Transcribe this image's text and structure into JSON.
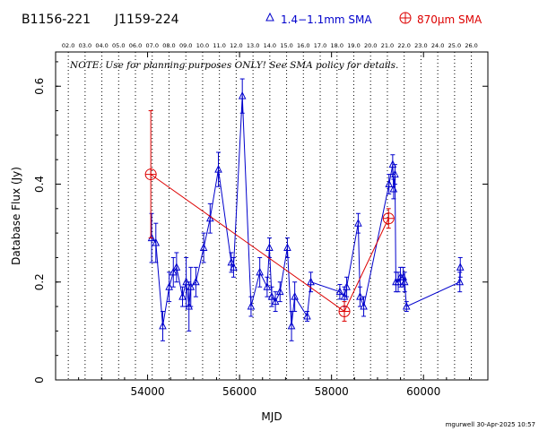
{
  "header": {
    "source_name": "B1156-221",
    "alt_name": "J1159-224",
    "legend_sma_mm": "1.4−1.1mm SMA",
    "legend_sma_870": "870μm SMA"
  },
  "note": "NOTE: Use for planning purposes ONLY! See SMA policy for details.",
  "footer": "mgurwell 30-Apr-2025 10:57",
  "colors": {
    "blue": "#0000cc",
    "red": "#dd0000",
    "text": "#000000"
  },
  "chart_data": {
    "type": "scatter",
    "title": "",
    "xlabel": "MJD",
    "ylabel": "Database Flux (Jy)",
    "xlim": [
      52000,
      61400
    ],
    "ylim": [
      0,
      0.67
    ],
    "x_ticks": [
      54000,
      56000,
      58000,
      60000
    ],
    "y_ticks": [
      0,
      0.2,
      0.4,
      0.6
    ],
    "y_tick_labels": [
      "0",
      "0.2",
      "0.4",
      "0.6"
    ],
    "top_axis_labels": [
      "02.0",
      "03.0",
      "04.0",
      "05.0",
      "06.0",
      "07.0",
      "08.0",
      "09.0",
      "10.0",
      "11.0",
      "12.0",
      "13.0",
      "14.0",
      "15.0",
      "16.0",
      "17.0",
      "18.0",
      "19.0",
      "20.0",
      "21.0",
      "22.0",
      "23.0",
      "24.0",
      "25.0",
      "26.0"
    ],
    "top_axis_mjd": [
      52276,
      52641,
      53006,
      53371,
      53736,
      54101,
      54466,
      54832,
      55197,
      55562,
      55927,
      56293,
      56658,
      57023,
      57388,
      57754,
      58119,
      58484,
      58849,
      59215,
      59580,
      59945,
      60310,
      60676,
      61041
    ],
    "grid": "vertical dotted lines at year boundaries",
    "series": [
      {
        "name": "1.4−1.1mm SMA",
        "color": "#0000cc",
        "marker": "triangle",
        "x": [
          54088,
          54180,
          54330,
          54470,
          54560,
          54630,
          54760,
          54840,
          54900,
          54940,
          55050,
          55220,
          55360,
          55540,
          55820,
          55870,
          56060,
          56250,
          56440,
          56600,
          56650,
          56700,
          56780,
          56880,
          57040,
          57130,
          57200,
          57470,
          57550,
          58180,
          58280,
          58330,
          58580,
          58620,
          58700,
          59250,
          59330,
          59350,
          59380,
          59400,
          59450,
          59500,
          59560,
          59590,
          59630,
          60790,
          60800
        ],
        "y": [
          0.29,
          0.28,
          0.11,
          0.19,
          0.22,
          0.23,
          0.17,
          0.2,
          0.15,
          0.19,
          0.2,
          0.27,
          0.33,
          0.43,
          0.24,
          0.23,
          0.58,
          0.15,
          0.22,
          0.19,
          0.27,
          0.17,
          0.16,
          0.18,
          0.27,
          0.11,
          0.17,
          0.13,
          0.2,
          0.18,
          0.17,
          0.19,
          0.32,
          0.17,
          0.15,
          0.4,
          0.44,
          0.39,
          0.42,
          0.2,
          0.2,
          0.21,
          0.21,
          0.2,
          0.15,
          0.2,
          0.23
        ],
        "yerr": [
          0.05,
          0.04,
          0.03,
          0.03,
          0.03,
          0.03,
          0.02,
          0.05,
          0.05,
          0.04,
          0.03,
          0.03,
          0.03,
          0.035,
          0.02,
          0.02,
          0.035,
          0.02,
          0.03,
          0.02,
          0.02,
          0.02,
          0.02,
          0.02,
          0.02,
          0.03,
          0.03,
          0.01,
          0.02,
          0.015,
          0.02,
          0.02,
          0.02,
          0.02,
          0.02,
          0.02,
          0.02,
          0.02,
          0.02,
          0.02,
          0.02,
          0.02,
          0.02,
          0.02,
          0.01,
          0.02,
          0.02
        ]
      },
      {
        "name": "870μm SMA",
        "color": "#dd0000",
        "marker": "circle-plus",
        "x": [
          54070,
          58280,
          59240
        ],
        "y": [
          0.42,
          0.14,
          0.33
        ],
        "yerr": [
          0.13,
          0.02,
          0.02
        ]
      }
    ]
  }
}
